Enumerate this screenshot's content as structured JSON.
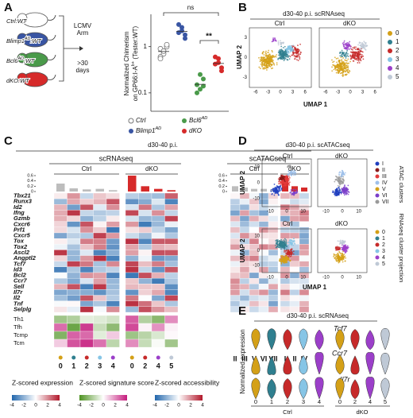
{
  "panelA": {
    "label": "A",
    "mice": [
      "Ctrl:WT",
      [
        "Blimp1",
        "AD",
        ":WT"
      ],
      [
        "Bcl6",
        "AD",
        ":WT"
      ],
      "dKO:WT"
    ],
    "arrow": [
      "LCMV",
      "Arm",
      ">30",
      "days"
    ],
    "ylabel": [
      "Normalized Chimerism",
      [
        "on GP66:I-A",
        "b+",
        " (Tester:WT)"
      ]
    ],
    "yticks": [
      1,
      0.1
    ],
    "ylim": [
      0.04,
      5
    ],
    "points": [
      [
        0.9,
        0.7,
        1.0,
        0.6,
        0.8,
        1.1,
        0.55
      ],
      [
        2.0,
        2.6,
        1.8,
        3.0,
        2.2,
        1.5
      ],
      [
        0.15,
        0.12,
        0.2,
        0.1,
        0.25,
        0.14
      ],
      [
        0.42,
        0.55,
        0.3,
        0.6,
        0.45,
        0.35
      ]
    ],
    "sig": [
      "ns",
      "**"
    ],
    "legend": [
      "Ctrl",
      [
        "Blimp1",
        "AD"
      ],
      [
        "Bcl6",
        "AD"
      ],
      "dKO"
    ]
  },
  "panelB": {
    "label": "B",
    "title": "d30-40 p.i. scRNAseq",
    "groups": [
      "Ctrl",
      "dKO"
    ],
    "xlabel": "UMAP 1",
    "ylabel": "UMAP 2",
    "xticks": [
      -6,
      -3,
      0,
      3,
      6
    ],
    "yticks": [
      3,
      0,
      -3
    ],
    "legend": [
      "0",
      "1",
      "2",
      "3",
      "4",
      "5"
    ]
  },
  "panelC": {
    "label": "C",
    "title": "d30-40 p.i.",
    "methods": [
      "scRNAseq",
      "scATACseq"
    ],
    "groups": [
      "Ctrl",
      "dKO"
    ],
    "barticks": [
      0.6,
      0.4,
      0.2,
      0
    ],
    "rnaBars": [
      0.3,
      0.12,
      0.08,
      0.1,
      0.05,
      0.6,
      0.2,
      0.1,
      0.05
    ],
    "atacBars": [
      0.2,
      0.15,
      0.1,
      0.1,
      0.08,
      0.6,
      0.2,
      0.15
    ],
    "genes": [
      "Tbx21",
      "Runx3",
      "Id2",
      "Ifng",
      "Gzmb",
      "Cxcr6",
      "Prf1",
      "Cxcr5",
      "Tox",
      "Tox2",
      "Ascl2",
      "Angptl2",
      "Tcf7",
      "Id3",
      "Bcl2",
      "Ccr7",
      "Sell",
      "Il7r",
      "Il2",
      "Tnf",
      "Selplg"
    ],
    "signatures": [
      "Th1",
      "Tfh",
      "Tcmp",
      "Tcm"
    ],
    "rnaClusters": [
      "0",
      "1",
      "2",
      "3",
      "4",
      "0",
      "2",
      "4",
      "5"
    ],
    "atacClusters": [
      "II",
      "III",
      "V",
      "VI",
      "VII",
      "I",
      "II",
      "IV"
    ],
    "legends": [
      "Z-scored expression",
      "Z-scored signature score",
      "Z-scored accessibility"
    ],
    "legendticks": [
      -4,
      -2,
      0,
      2,
      4
    ]
  },
  "panelD": {
    "label": "D",
    "title": "d30-40 p.i. scATACseq",
    "groups": [
      "Ctrl",
      "dKO"
    ],
    "xlabel": "UMAP 1",
    "ylabel": "UMAP 2",
    "xticks": [
      -10,
      0,
      10
    ],
    "yticks": [
      10,
      0,
      -10
    ],
    "atacLegend": [
      "I",
      "II",
      "III",
      "IV",
      "V",
      "VI",
      "VII"
    ],
    "atacTitle": "ATAC clusters",
    "rnaLegend": [
      "0",
      "1",
      "2",
      "3",
      "4",
      "5"
    ],
    "rnaTitle": "RNAseq cluster projection"
  },
  "panelE": {
    "label": "E",
    "title": "d30-40 p.i. scRNAseq",
    "genes": [
      "Tcf7",
      "Ccr7",
      "Il7r"
    ],
    "ylabel": "Normalized expression",
    "clusters": [
      "0",
      "1",
      "2",
      "3",
      "4",
      "0",
      "2",
      "4",
      "5"
    ],
    "groups": [
      "Ctrl",
      "dKO"
    ]
  }
}
